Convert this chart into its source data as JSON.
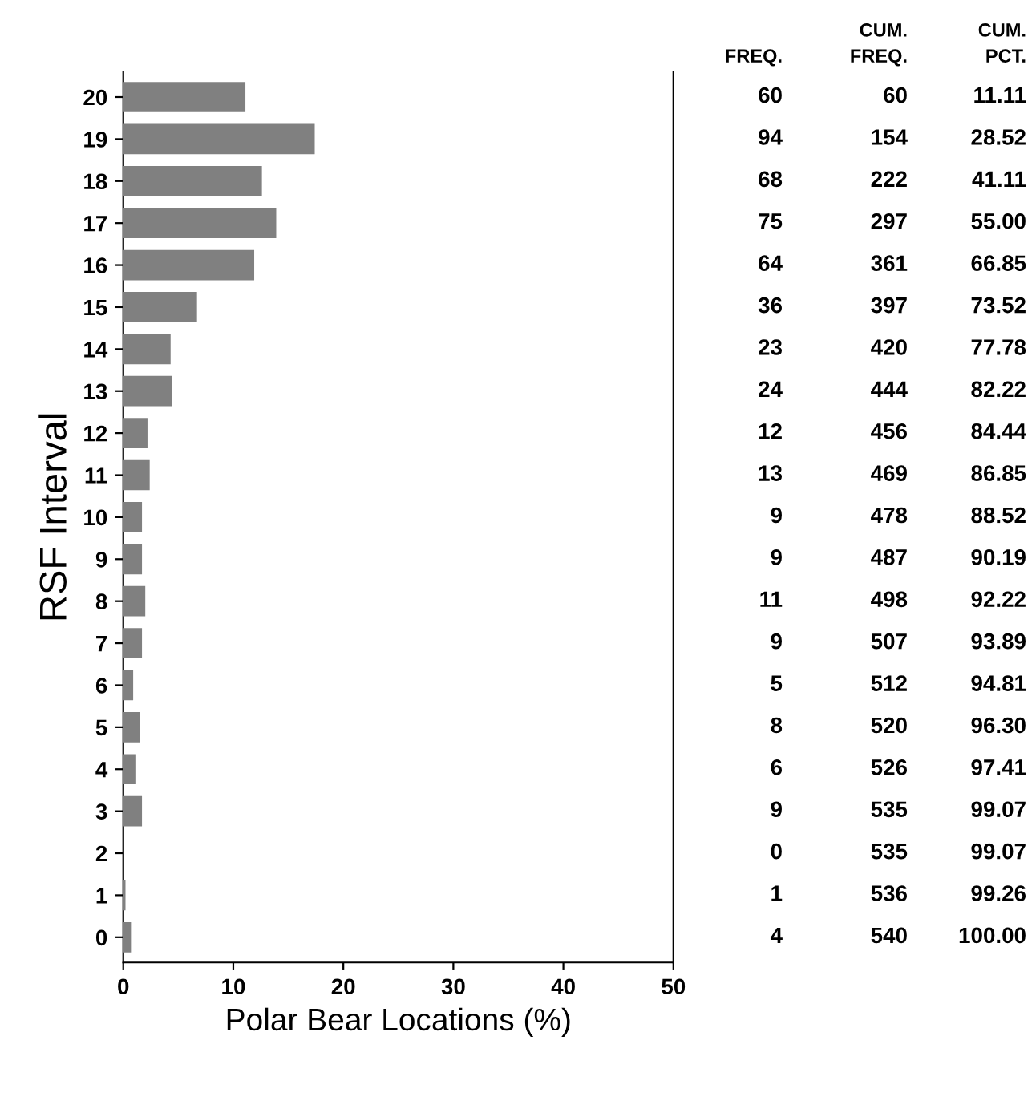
{
  "chart_data": {
    "type": "bar",
    "orientation": "horizontal",
    "xlabel": "Polar Bear Locations (%)",
    "ylabel": "RSF Interval",
    "categories": [
      "20",
      "19",
      "18",
      "17",
      "16",
      "15",
      "14",
      "13",
      "12",
      "11",
      "10",
      "9",
      "8",
      "7",
      "6",
      "5",
      "4",
      "3",
      "2",
      "1",
      "0"
    ],
    "values": [
      11.1,
      17.4,
      12.6,
      13.9,
      11.9,
      6.7,
      4.3,
      4.4,
      2.2,
      2.4,
      1.7,
      1.7,
      2.0,
      1.7,
      0.9,
      1.5,
      1.1,
      1.7,
      0,
      0.2,
      0.7
    ],
    "color": "#808080",
    "xlim": [
      0,
      50
    ],
    "xticks": [
      0,
      10,
      20,
      30,
      40,
      50
    ],
    "grid": false,
    "annotations": [
      "FREQ.",
      "CUM.\nFREQ.",
      "CUM.\nPCT.",
      "60",
      "60",
      "11.11",
      "94",
      "154",
      "28.52",
      "68",
      "222",
      "41.11",
      "75",
      "297",
      "55.00",
      "64",
      "361",
      "66.85",
      "36",
      "397",
      "73.52",
      "23",
      "420",
      "77.78",
      "24",
      "444",
      "82.22",
      "12",
      "456",
      "84.44",
      "13",
      "469",
      "86.85",
      "9",
      "478",
      "88.52",
      "9",
      "487",
      "90.19",
      "11",
      "498",
      "92.22",
      "9",
      "507",
      "93.89",
      "5",
      "512",
      "94.81",
      "8",
      "520",
      "96.30",
      "6",
      "526",
      "97.41",
      "9",
      "535",
      "99.07",
      "0",
      "535",
      "99.07",
      "1",
      "536",
      "99.26",
      "4",
      "540",
      "100.00"
    ]
  }
}
